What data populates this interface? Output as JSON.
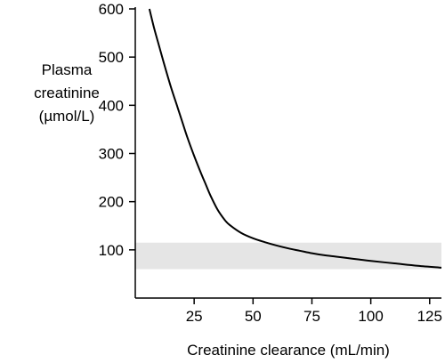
{
  "chart_data": {
    "type": "line",
    "title": "",
    "xlabel": "Creatinine clearance (mL/min)",
    "ylabel_lines": [
      "Plasma",
      "creatinine",
      "(µmol/L)"
    ],
    "xlim": [
      0,
      130
    ],
    "ylim": [
      0,
      600
    ],
    "xticks": [
      25,
      50,
      75,
      100,
      125
    ],
    "xtick_labels": [
      "25",
      "50",
      "75",
      "100",
      "125"
    ],
    "yticks": [
      100,
      200,
      300,
      400,
      500,
      600
    ],
    "ytick_labels": [
      "100",
      "200",
      "300",
      "400",
      "500",
      "600"
    ],
    "grid": false,
    "reference_band": {
      "y_range": [
        60,
        115
      ],
      "color": "#e5e5e5"
    },
    "series": [
      {
        "color": "#000000",
        "x": [
          6,
          8,
          10,
          12,
          15,
          18,
          20,
          22,
          25,
          28,
          30,
          32,
          35,
          38,
          40,
          45,
          50,
          55,
          60,
          65,
          70,
          75,
          80,
          85,
          90,
          95,
          100,
          110,
          120,
          130
        ],
        "y": [
          600,
          560,
          525,
          490,
          440,
          395,
          365,
          335,
          295,
          258,
          235,
          212,
          183,
          162,
          152,
          135,
          124,
          116,
          109,
          103,
          98,
          93,
          89,
          86,
          83,
          80,
          77,
          72,
          67,
          63
        ]
      }
    ]
  }
}
